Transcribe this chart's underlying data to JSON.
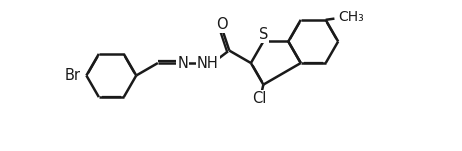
{
  "background_color": "#ffffff",
  "line_color": "#1a1a1a",
  "line_width": 1.8,
  "font_size": 10.5,
  "figsize": [
    4.62,
    1.51
  ],
  "dpi": 100,
  "labels": {
    "Br": "Br",
    "O": "O",
    "S": "S",
    "Cl": "Cl",
    "N1": "N",
    "N2": "NH",
    "Me": "CH₃"
  }
}
